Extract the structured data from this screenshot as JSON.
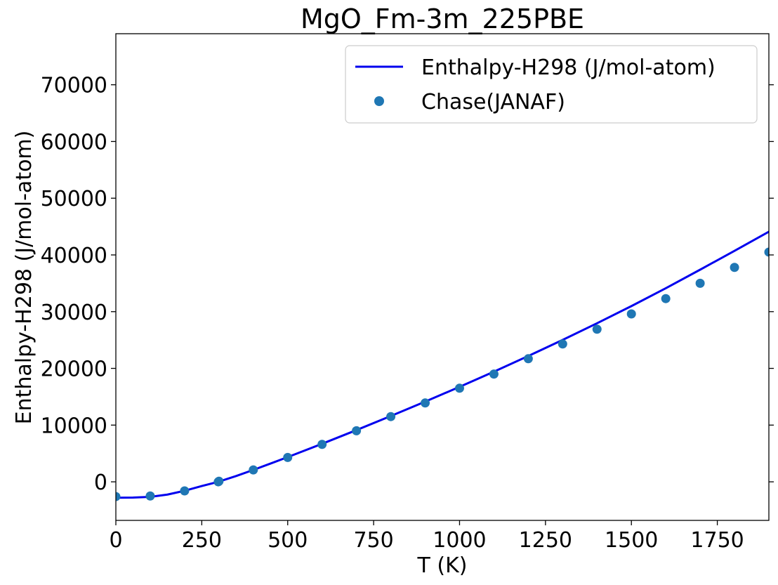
{
  "chart_data": {
    "type": "line",
    "title": "MgO_Fm-3m_225PBE",
    "xlabel": "T (K)",
    "ylabel": "Enthalpy-H298 (J/mol-atom)",
    "xlim": [
      0,
      1900
    ],
    "ylim": [
      -6800,
      79000
    ],
    "xticks": [
      0,
      250,
      500,
      750,
      1000,
      1250,
      1500,
      1750
    ],
    "yticks": [
      0,
      10000,
      20000,
      30000,
      40000,
      50000,
      60000,
      70000
    ],
    "grid": false,
    "legend_position": "top-right",
    "series": [
      {
        "name": "Enthalpy-H298 (J/mol-atom)",
        "kind": "line",
        "color": "#0000ee",
        "x": [
          0,
          50,
          100,
          150,
          200,
          250,
          298,
          350,
          400,
          450,
          500,
          600,
          700,
          800,
          900,
          1000,
          1100,
          1200,
          1300,
          1400,
          1500,
          1600,
          1700,
          1800,
          1900
        ],
        "y": [
          -2800,
          -2780,
          -2650,
          -2250,
          -1580,
          -740,
          0,
          1020,
          2100,
          3220,
          4360,
          6700,
          9120,
          11600,
          14140,
          16740,
          19420,
          22180,
          25020,
          27950,
          30980,
          34130,
          37400,
          40720,
          44100
        ]
      },
      {
        "name": "Chase(JANAF)",
        "kind": "scatter",
        "color": "#1f77b4",
        "x": [
          0,
          100,
          200,
          298,
          300,
          400,
          500,
          600,
          700,
          800,
          900,
          1000,
          1100,
          1200,
          1300,
          1400,
          1500,
          1600,
          1700,
          1800,
          1900
        ],
        "y": [
          -2600,
          -2500,
          -1600,
          0,
          100,
          2100,
          4300,
          6600,
          9000,
          11500,
          13900,
          16500,
          19000,
          21700,
          24300,
          26900,
          29600,
          32300,
          35000,
          37800,
          40500
        ]
      }
    ]
  }
}
